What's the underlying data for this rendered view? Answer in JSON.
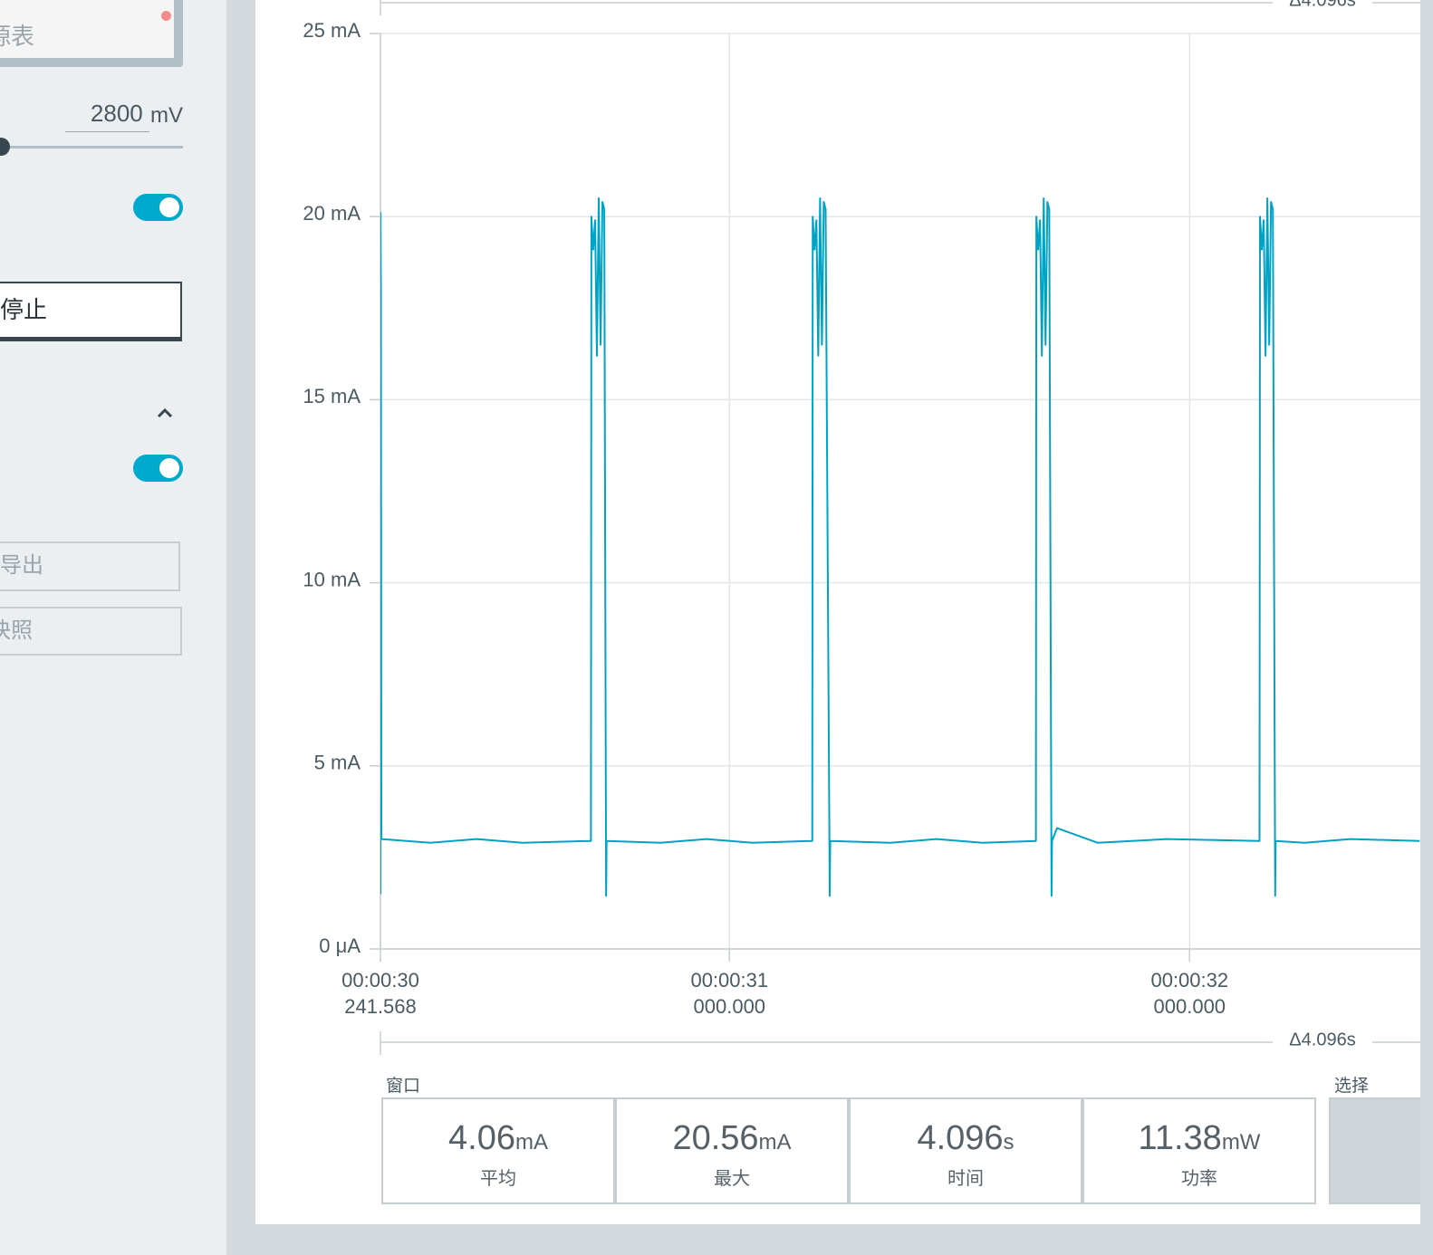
{
  "sidebar": {
    "source_label": "源表",
    "voltage": 2800,
    "voltage_unit": "mV",
    "stop_button": "停止",
    "export_button": "导出",
    "snapshot_button": "快照"
  },
  "chart_data": {
    "type": "line",
    "color": "#00a3c4",
    "grid": true,
    "xlim": [
      30.241568,
      34.337568
    ],
    "xticks": [
      {
        "value": 30.241568,
        "label": "00:00:30\n241.568"
      },
      {
        "value": 31,
        "label": "00:00:31\n000.000"
      },
      {
        "value": 32,
        "label": "00:00:32\n000.000"
      }
    ],
    "ylim": [
      0,
      25
    ],
    "yticks": [
      {
        "value": 0,
        "label": "0 μA"
      },
      {
        "value": 5,
        "label": "5 mA"
      },
      {
        "value": 10,
        "label": "10 mA"
      },
      {
        "value": 15,
        "label": "15 mA"
      },
      {
        "value": 20,
        "label": "20 mA"
      },
      {
        "value": 25,
        "label": "25 mA"
      }
    ],
    "x": [
      30.2416,
      30.2418,
      30.2426,
      30.2436,
      30.35,
      30.45,
      30.55,
      30.699,
      30.7,
      30.704,
      30.708,
      30.712,
      30.716,
      30.72,
      30.724,
      30.728,
      30.732,
      30.733,
      30.85,
      30.95,
      31.05,
      31.18,
      31.181,
      31.185,
      31.189,
      31.193,
      31.197,
      31.201,
      31.205,
      31.209,
      31.218,
      31.219,
      31.35,
      31.45,
      31.55,
      31.666,
      31.667,
      31.671,
      31.675,
      31.679,
      31.683,
      31.687,
      31.691,
      31.695,
      31.7,
      31.701,
      31.712,
      31.8,
      31.95,
      32.152,
      32.153,
      32.157,
      32.161,
      32.165,
      32.169,
      32.173,
      32.177,
      32.181,
      32.186,
      32.187,
      32.25,
      32.35,
      32.5
    ],
    "values": [
      1.5,
      20.1,
      17.8,
      3.0,
      2.9,
      3.0,
      2.9,
      2.95,
      20.0,
      19.1,
      19.9,
      16.2,
      20.5,
      16.5,
      20.4,
      20.2,
      1.45,
      2.95,
      2.9,
      3.0,
      2.9,
      2.95,
      20.0,
      19.1,
      19.9,
      16.2,
      20.5,
      16.5,
      20.4,
      20.2,
      1.45,
      2.95,
      2.9,
      3.0,
      2.9,
      2.95,
      20.0,
      19.1,
      19.9,
      16.2,
      20.5,
      16.5,
      20.4,
      20.2,
      1.45,
      2.95,
      3.3,
      2.9,
      3.0,
      2.95,
      20.0,
      19.1,
      19.9,
      16.2,
      20.5,
      16.5,
      20.4,
      20.2,
      1.45,
      2.95,
      2.9,
      3.0,
      2.95
    ]
  },
  "window_duration": "Δ4.096s",
  "window_label": "窗口",
  "selection_label": "选择",
  "stats": [
    {
      "value": 4.06,
      "unit": "mA",
      "label": "平均"
    },
    {
      "value": 20.56,
      "unit": "mA",
      "label": "最大"
    },
    {
      "value": 4.096,
      "unit": "s",
      "label": "时间"
    },
    {
      "value": 11.38,
      "unit": "mW",
      "label": "功率"
    }
  ]
}
